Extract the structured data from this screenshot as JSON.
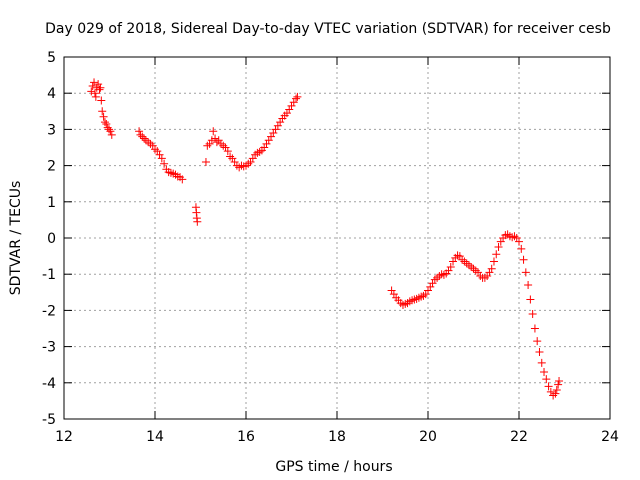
{
  "chart_data": {
    "type": "scatter",
    "title": "Day 029 of 2018, Sidereal Day-to-day VTEC variation (SDTVAR) for receiver cesb",
    "xlabel": "GPS time / hours",
    "ylabel": "SDTVAR / TECUs",
    "xlim": [
      12,
      24
    ],
    "ylim": [
      -5,
      5
    ],
    "xticks": [
      12,
      14,
      16,
      18,
      20,
      22,
      24
    ],
    "yticks": [
      -5,
      -4,
      -3,
      -2,
      -1,
      0,
      1,
      2,
      3,
      4,
      5
    ],
    "grid": true,
    "marker": "+",
    "color": "#ff0000",
    "series": [
      {
        "points": [
          [
            12.6,
            4.05
          ],
          [
            12.63,
            4.2
          ],
          [
            12.66,
            4.3
          ],
          [
            12.68,
            4.0
          ],
          [
            12.7,
            3.9
          ],
          [
            12.72,
            4.15
          ],
          [
            12.75,
            4.25
          ],
          [
            12.78,
            4.1
          ],
          [
            12.8,
            4.15
          ],
          [
            12.82,
            3.8
          ],
          [
            12.84,
            3.5
          ],
          [
            12.87,
            3.35
          ],
          [
            12.9,
            3.2
          ],
          [
            12.93,
            3.15
          ],
          [
            12.96,
            3.05
          ],
          [
            12.99,
            3.0
          ],
          [
            13.02,
            2.95
          ],
          [
            13.05,
            2.85
          ],
          [
            13.65,
            2.95
          ],
          [
            13.68,
            2.85
          ],
          [
            13.72,
            2.8
          ],
          [
            13.76,
            2.75
          ],
          [
            13.8,
            2.7
          ],
          [
            13.85,
            2.65
          ],
          [
            13.9,
            2.6
          ],
          [
            13.95,
            2.55
          ],
          [
            14.0,
            2.45
          ],
          [
            14.05,
            2.4
          ],
          [
            14.1,
            2.3
          ],
          [
            14.15,
            2.2
          ],
          [
            14.2,
            2.05
          ],
          [
            14.25,
            1.9
          ],
          [
            14.3,
            1.82
          ],
          [
            14.35,
            1.8
          ],
          [
            14.4,
            1.78
          ],
          [
            14.45,
            1.75
          ],
          [
            14.5,
            1.7
          ],
          [
            14.55,
            1.68
          ],
          [
            14.6,
            1.62
          ],
          [
            14.9,
            0.85
          ],
          [
            14.91,
            0.7
          ],
          [
            14.92,
            0.55
          ],
          [
            14.93,
            0.45
          ],
          [
            15.12,
            2.1
          ],
          [
            15.15,
            2.55
          ],
          [
            15.2,
            2.6
          ],
          [
            15.25,
            2.7
          ],
          [
            15.28,
            2.95
          ],
          [
            15.32,
            2.75
          ],
          [
            15.36,
            2.65
          ],
          [
            15.4,
            2.7
          ],
          [
            15.45,
            2.6
          ],
          [
            15.5,
            2.55
          ],
          [
            15.55,
            2.5
          ],
          [
            15.6,
            2.4
          ],
          [
            15.65,
            2.25
          ],
          [
            15.7,
            2.2
          ],
          [
            15.75,
            2.1
          ],
          [
            15.8,
            2.0
          ],
          [
            15.85,
            1.95
          ],
          [
            15.9,
            2.0
          ],
          [
            15.95,
            1.98
          ],
          [
            16.0,
            2.0
          ],
          [
            16.05,
            2.05
          ],
          [
            16.1,
            2.1
          ],
          [
            16.15,
            2.2
          ],
          [
            16.2,
            2.3
          ],
          [
            16.25,
            2.35
          ],
          [
            16.3,
            2.38
          ],
          [
            16.35,
            2.42
          ],
          [
            16.4,
            2.5
          ],
          [
            16.45,
            2.6
          ],
          [
            16.5,
            2.7
          ],
          [
            16.55,
            2.8
          ],
          [
            16.6,
            2.9
          ],
          [
            16.65,
            3.0
          ],
          [
            16.7,
            3.1
          ],
          [
            16.75,
            3.2
          ],
          [
            16.8,
            3.3
          ],
          [
            16.85,
            3.38
          ],
          [
            16.9,
            3.45
          ],
          [
            16.95,
            3.55
          ],
          [
            17.0,
            3.65
          ],
          [
            17.05,
            3.75
          ],
          [
            17.1,
            3.85
          ],
          [
            17.13,
            3.9
          ],
          [
            19.2,
            -1.45
          ],
          [
            19.25,
            -1.55
          ],
          [
            19.3,
            -1.65
          ],
          [
            19.35,
            -1.72
          ],
          [
            19.4,
            -1.8
          ],
          [
            19.45,
            -1.85
          ],
          [
            19.5,
            -1.82
          ],
          [
            19.55,
            -1.8
          ],
          [
            19.6,
            -1.75
          ],
          [
            19.65,
            -1.72
          ],
          [
            19.7,
            -1.7
          ],
          [
            19.75,
            -1.68
          ],
          [
            19.8,
            -1.65
          ],
          [
            19.85,
            -1.62
          ],
          [
            19.9,
            -1.6
          ],
          [
            19.95,
            -1.55
          ],
          [
            20.0,
            -1.45
          ],
          [
            20.05,
            -1.35
          ],
          [
            20.1,
            -1.25
          ],
          [
            20.15,
            -1.15
          ],
          [
            20.2,
            -1.1
          ],
          [
            20.25,
            -1.05
          ],
          [
            20.3,
            -1.0
          ],
          [
            20.35,
            -1.02
          ],
          [
            20.4,
            -0.98
          ],
          [
            20.45,
            -0.9
          ],
          [
            20.5,
            -0.8
          ],
          [
            20.55,
            -0.65
          ],
          [
            20.6,
            -0.55
          ],
          [
            20.65,
            -0.48
          ],
          [
            20.7,
            -0.5
          ],
          [
            20.75,
            -0.6
          ],
          [
            20.8,
            -0.65
          ],
          [
            20.85,
            -0.7
          ],
          [
            20.9,
            -0.75
          ],
          [
            20.95,
            -0.8
          ],
          [
            21.0,
            -0.85
          ],
          [
            21.05,
            -0.9
          ],
          [
            21.1,
            -0.95
          ],
          [
            21.15,
            -1.05
          ],
          [
            21.2,
            -1.1
          ],
          [
            21.25,
            -1.1
          ],
          [
            21.3,
            -1.05
          ],
          [
            21.35,
            -0.95
          ],
          [
            21.4,
            -0.85
          ],
          [
            21.45,
            -0.65
          ],
          [
            21.5,
            -0.45
          ],
          [
            21.55,
            -0.25
          ],
          [
            21.6,
            -0.1
          ],
          [
            21.65,
            0.0
          ],
          [
            21.7,
            0.08
          ],
          [
            21.75,
            0.1
          ],
          [
            21.8,
            0.05
          ],
          [
            21.85,
            0.02
          ],
          [
            21.9,
            0.05
          ],
          [
            21.95,
            0.0
          ],
          [
            22.0,
            -0.1
          ],
          [
            22.05,
            -0.3
          ],
          [
            22.1,
            -0.6
          ],
          [
            22.15,
            -0.95
          ],
          [
            22.2,
            -1.3
          ],
          [
            22.25,
            -1.7
          ],
          [
            22.3,
            -2.1
          ],
          [
            22.35,
            -2.5
          ],
          [
            22.4,
            -2.85
          ],
          [
            22.45,
            -3.15
          ],
          [
            22.5,
            -3.45
          ],
          [
            22.55,
            -3.7
          ],
          [
            22.6,
            -3.9
          ],
          [
            22.65,
            -4.1
          ],
          [
            22.7,
            -4.25
          ],
          [
            22.75,
            -4.35
          ],
          [
            22.8,
            -4.3
          ],
          [
            22.83,
            -4.2
          ],
          [
            22.86,
            -4.05
          ],
          [
            22.88,
            -3.95
          ]
        ]
      }
    ]
  }
}
